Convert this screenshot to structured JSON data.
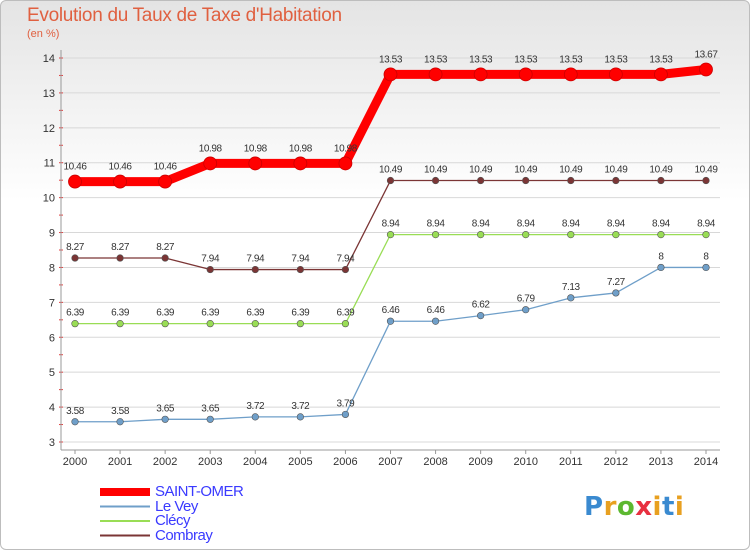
{
  "header": {
    "title": "Evolution du Taux de Taxe d'Habitation",
    "subtitle": "(en %)"
  },
  "logo": {
    "text": "Proxiti",
    "colors": [
      "#3a8ad0",
      "#e8a020",
      "#5cb830",
      "#e83040",
      "#e8a020",
      "#3a8ad0"
    ]
  },
  "chart_data": {
    "type": "line",
    "title": "Evolution du Taux de Taxe d'Habitation",
    "subtitle": "(en %)",
    "xlabel": "",
    "ylabel": "",
    "x": [
      "2000",
      "2001",
      "2002",
      "2003",
      "2004",
      "2005",
      "2006",
      "2007",
      "2008",
      "2009",
      "2010",
      "2011",
      "2012",
      "2013",
      "2014"
    ],
    "ylim": [
      3,
      14
    ],
    "yticks": [
      "3",
      "4",
      "5",
      "6",
      "7",
      "8",
      "9",
      "10",
      "11",
      "12",
      "13",
      "14"
    ],
    "grid": "horizontal",
    "legend_placement": "bottom-left",
    "series": [
      {
        "name": "SAINT-OMER",
        "color": "#ff0000",
        "values": [
          10.46,
          10.46,
          10.46,
          10.98,
          10.98,
          10.98,
          10.98,
          13.53,
          13.53,
          13.53,
          13.53,
          13.53,
          13.53,
          13.53,
          13.67
        ],
        "labels": [
          "10.46",
          "10.46",
          "10.46",
          "10.98",
          "10.98",
          "10.98",
          "10.98",
          "13.53",
          "13.53",
          "13.53",
          "13.53",
          "13.53",
          "13.53",
          "13.53",
          "13.67"
        ]
      },
      {
        "name": "Le Vey",
        "color": "#6f9fc9",
        "values": [
          3.58,
          3.58,
          3.65,
          3.65,
          3.72,
          3.72,
          3.79,
          6.46,
          6.46,
          6.62,
          6.79,
          7.13,
          7.27,
          8,
          8
        ],
        "labels": [
          "3.58",
          "3.58",
          "3.65",
          "3.65",
          "3.72",
          "3.72",
          "3.79",
          "6.46",
          "6.46",
          "6.62",
          "6.79",
          "7.13",
          "7.27",
          "8",
          "8"
        ]
      },
      {
        "name": "Clécy",
        "color": "#99dd55",
        "values": [
          6.39,
          6.39,
          6.39,
          6.39,
          6.39,
          6.39,
          6.39,
          8.94,
          8.94,
          8.94,
          8.94,
          8.94,
          8.94,
          8.94,
          8.94
        ],
        "labels": [
          "6.39",
          "6.39",
          "6.39",
          "6.39",
          "6.39",
          "6.39",
          "6.39",
          "8.94",
          "8.94",
          "8.94",
          "8.94",
          "8.94",
          "8.94",
          "8.94",
          "8.94"
        ]
      },
      {
        "name": "Combray",
        "color": "#7b3535",
        "values": [
          8.27,
          8.27,
          8.27,
          7.94,
          7.94,
          7.94,
          7.94,
          10.49,
          10.49,
          10.49,
          10.49,
          10.49,
          10.49,
          10.49,
          10.49
        ],
        "labels": [
          "8.27",
          "8.27",
          "8.27",
          "7.94",
          "7.94",
          "7.94",
          "7.94",
          "10.49",
          "10.49",
          "10.49",
          "10.49",
          "10.49",
          "10.49",
          "10.49",
          "10.49"
        ]
      }
    ]
  }
}
